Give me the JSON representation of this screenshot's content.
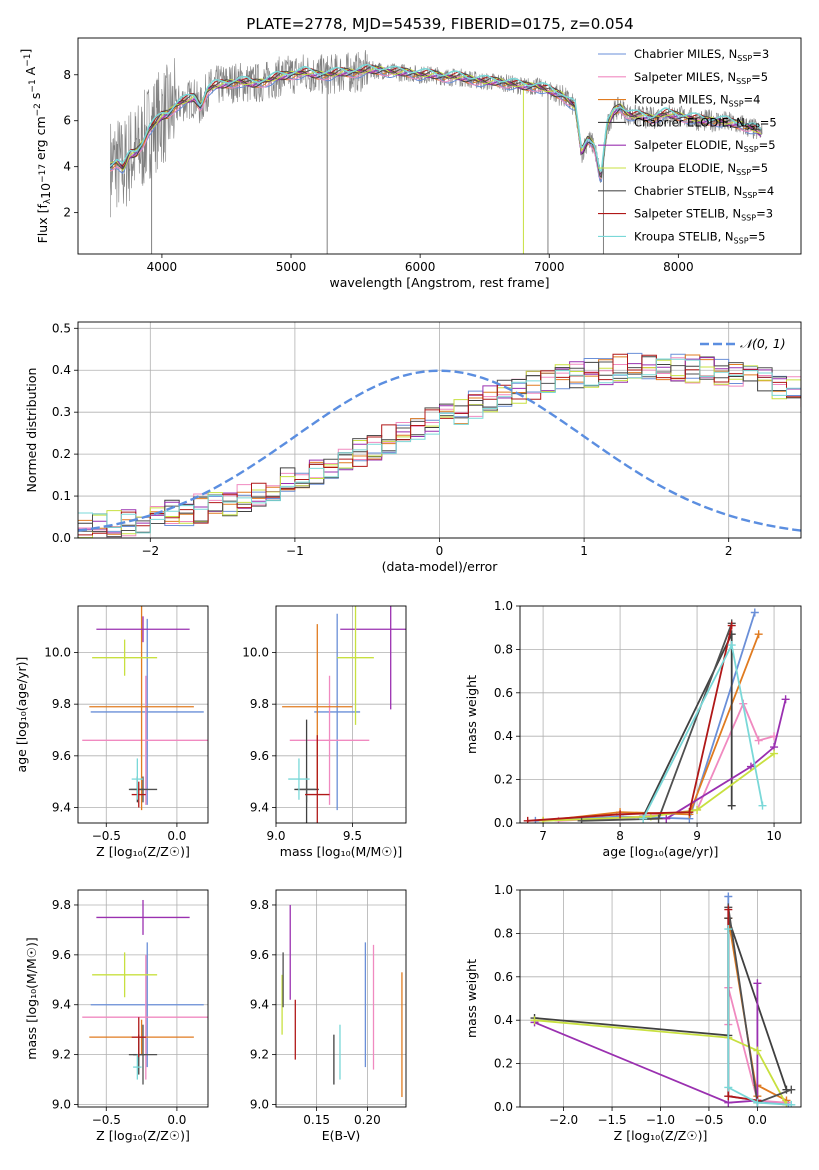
{
  "figure": {
    "title": "PLATE=2778, MJD=54539, FIBERID=0175, z=0.054",
    "legend_sub": "SSP",
    "legend_labels": [
      "Chabrier MILES, N",
      "Salpeter MILES, N",
      "Kroupa MILES, N",
      "Chabrier ELODIE, N",
      "Salpeter ELODIE, N",
      "Kroupa ELODIE, N",
      "Chabrier STELIB, N",
      "Salpeter STELIB, N",
      "Kroupa STELIB, N"
    ],
    "legend_eq": [
      "=3",
      "=5",
      "=4",
      "=5",
      "=5",
      "=5",
      "=4",
      "=3",
      "=5"
    ],
    "legend_colors": [
      "#6a8fd8",
      "#f08ac0",
      "#e07b20",
      "#404040",
      "#9a30b0",
      "#c8e040",
      "#505050",
      "#b01818",
      "#7ad8d8"
    ],
    "normal_label": "𝒩(0, 1)"
  },
  "chart_data": [
    {
      "id": "spectrum",
      "type": "line",
      "xlabel": "wavelength [Angstrom, rest frame]",
      "ylabel": "Flux [f_λ 10^-17 erg cm^-2 s^-1 A^-1]",
      "xlim": [
        3350,
        8950
      ],
      "ylim": [
        0.2,
        9.6
      ],
      "xticks": [
        4000,
        5000,
        6000,
        7000,
        8000
      ],
      "yticks": [
        2,
        4,
        6,
        8
      ],
      "grid": false,
      "legend_position": "upper right",
      "data_color": "#808080",
      "data_x_range": [
        3600,
        8650
      ],
      "model_x": [
        3600,
        3650,
        3700,
        3750,
        3800,
        3850,
        3900,
        3950,
        4000,
        4050,
        4100,
        4150,
        4200,
        4250,
        4300,
        4350,
        4400,
        4500,
        4600,
        4700,
        4800,
        4900,
        5000,
        5100,
        5200,
        5300,
        5400,
        5500,
        5600,
        5700,
        5800,
        5900,
        6000,
        6100,
        6200,
        6300,
        6400,
        6500,
        6600,
        6700,
        6800,
        6900,
        7000,
        7100,
        7200,
        7250,
        7300,
        7350,
        7400,
        7450,
        7500,
        7550,
        7600,
        7650,
        7700,
        7800,
        7900,
        8000,
        8100,
        8200,
        8300,
        8400,
        8500,
        8600,
        8650
      ],
      "model_y": [
        4.0,
        4.2,
        3.9,
        4.5,
        4.6,
        5.0,
        5.6,
        5.9,
        6.2,
        6.3,
        6.6,
        6.8,
        6.9,
        7.0,
        6.6,
        7.3,
        7.5,
        7.6,
        7.7,
        7.6,
        7.7,
        7.9,
        8.0,
        8.1,
        8.0,
        8.0,
        8.1,
        8.1,
        8.2,
        8.2,
        8.1,
        8.1,
        8.0,
        8.0,
        7.9,
        7.9,
        7.8,
        7.7,
        7.7,
        7.6,
        7.5,
        7.5,
        7.3,
        7.1,
        6.6,
        4.6,
        5.2,
        4.9,
        3.4,
        5.8,
        6.4,
        6.6,
        6.3,
        6.2,
        6.2,
        6.1,
        6.3,
        6.2,
        6.1,
        6.0,
        6.0,
        5.9,
        5.8,
        5.6,
        5.4
      ]
    },
    {
      "id": "residuals",
      "type": "line",
      "xlabel": "(data-model)/error",
      "ylabel": "Normed distribution",
      "xlim": [
        -2.5,
        2.5
      ],
      "ylim": [
        0,
        0.515
      ],
      "xticks": [
        -2,
        -1,
        0,
        1,
        2
      ],
      "yticks": [
        0,
        0.1,
        0.2,
        0.3,
        0.4,
        0.5
      ],
      "grid": true,
      "legend_position": "upper right",
      "bin_width": 0.1,
      "bin_start": -2.5,
      "hist_base": [
        0.025,
        0.028,
        0.032,
        0.036,
        0.042,
        0.048,
        0.055,
        0.062,
        0.07,
        0.078,
        0.088,
        0.098,
        0.11,
        0.122,
        0.135,
        0.148,
        0.162,
        0.176,
        0.19,
        0.205,
        0.22,
        0.235,
        0.25,
        0.264,
        0.278,
        0.292,
        0.305,
        0.318,
        0.33,
        0.342,
        0.353,
        0.363,
        0.372,
        0.381,
        0.388,
        0.394,
        0.4,
        0.404,
        0.407,
        0.408,
        0.408,
        0.407,
        0.404,
        0.4,
        0.394,
        0.388,
        0.381,
        0.372,
        0.363,
        0.353,
        0.342,
        0.33,
        0.318,
        0.305,
        0.292,
        0.278,
        0.264,
        0.25,
        0.235,
        0.22,
        0.205,
        0.19,
        0.176,
        0.162,
        0.148,
        0.135,
        0.122,
        0.11,
        0.098,
        0.088,
        0.078,
        0.07,
        0.062,
        0.055,
        0.048,
        0.042,
        0.036,
        0.032,
        0.028,
        0.025
      ]
    },
    {
      "id": "age-vs-Z",
      "type": "scatter",
      "xlabel": "Z [log₁₀(Z/Z☉)]",
      "ylabel": "age  [log₁₀(age/yr)]",
      "xlim": [
        -0.7,
        0.22
      ],
      "ylim": [
        9.34,
        10.18
      ],
      "xticks": [
        -0.5,
        0.0
      ],
      "yticks": [
        9.4,
        9.6,
        9.8,
        10.0
      ],
      "grid": true,
      "points": [
        {
          "x": -0.21,
          "y": 9.77,
          "xerr": 0.4,
          "yerr": 0.36
        },
        {
          "x": -0.22,
          "y": 9.66,
          "xerr": 0.45,
          "yerr": 0.25
        },
        {
          "x": -0.25,
          "y": 9.79,
          "xerr": 0.37,
          "yerr": 0.4
        },
        {
          "x": -0.28,
          "y": 9.47,
          "xerr": 0.05,
          "yerr": 0.05
        },
        {
          "x": -0.24,
          "y": 10.09,
          "xerr": 0.33,
          "yerr": 0.05
        },
        {
          "x": -0.37,
          "y": 9.98,
          "xerr": 0.23,
          "yerr": 0.07
        },
        {
          "x": -0.24,
          "y": 9.47,
          "xerr": 0.1,
          "yerr": 0.05
        },
        {
          "x": -0.27,
          "y": 9.45,
          "xerr": 0.05,
          "yerr": 0.05
        },
        {
          "x": -0.28,
          "y": 9.51,
          "xerr": 0.04,
          "yerr": 0.08
        }
      ]
    },
    {
      "id": "age-vs-mass",
      "type": "scatter",
      "xlabel": "mass [log₁₀(M/M☉)]",
      "ylabel": "",
      "xlim": [
        9.0,
        9.85
      ],
      "ylim": [
        9.34,
        10.18
      ],
      "xticks": [
        9.0,
        9.5
      ],
      "yticks": [
        9.4,
        9.6,
        9.8,
        10.0
      ],
      "grid": true,
      "points": [
        {
          "x": 9.4,
          "y": 9.77,
          "xerr": 0.15,
          "yerr": 0.38
        },
        {
          "x": 9.35,
          "y": 9.66,
          "xerr": 0.26,
          "yerr": 0.25
        },
        {
          "x": 9.27,
          "y": 9.79,
          "xerr": 0.23,
          "yerr": 0.32
        },
        {
          "x": 9.2,
          "y": 9.47,
          "xerr": 0.08,
          "yerr": 0.27
        },
        {
          "x": 9.75,
          "y": 10.09,
          "xerr": 0.33,
          "yerr": 0.31
        },
        {
          "x": 9.52,
          "y": 9.98,
          "xerr": 0.12,
          "yerr": 0.26
        },
        {
          "x": 9.2,
          "y": 9.47,
          "xerr": 0.06,
          "yerr": 0.05
        },
        {
          "x": 9.27,
          "y": 9.45,
          "xerr": 0.08,
          "yerr": 0.23
        },
        {
          "x": 9.15,
          "y": 9.51,
          "xerr": 0.07,
          "yerr": 0.08
        }
      ]
    },
    {
      "id": "weight-vs-age",
      "type": "line",
      "xlabel": "age  [log₁₀(age/yr)]",
      "ylabel": "mass weight",
      "xlim": [
        6.7,
        10.35
      ],
      "ylim": [
        0,
        1.0
      ],
      "xticks": [
        7,
        8,
        9,
        10
      ],
      "yticks": [
        0.0,
        0.2,
        0.4,
        0.6,
        0.8,
        1.0
      ],
      "grid": true,
      "series": [
        {
          "x": [
            6.9,
            8.0,
            8.9,
            9.75
          ],
          "y": [
            0.01,
            0.03,
            0.02,
            0.97
          ]
        },
        {
          "x": [
            7.2,
            8.3,
            9.0,
            9.6,
            9.8,
            10.0
          ],
          "y": [
            0.01,
            0.03,
            0.06,
            0.55,
            0.38,
            0.4
          ]
        },
        {
          "x": [
            7.0,
            8.0,
            8.9,
            9.8
          ],
          "y": [
            0.01,
            0.05,
            0.04,
            0.87
          ]
        },
        {
          "x": [
            8.3,
            9.45,
            9.45
          ],
          "y": [
            0.03,
            0.87,
            0.08
          ]
        },
        {
          "x": [
            8.6,
            9.7,
            10.0,
            10.15
          ],
          "y": [
            0.02,
            0.26,
            0.35,
            0.57
          ]
        },
        {
          "x": [
            7.0,
            8.4,
            9.0,
            10.0
          ],
          "y": [
            0.01,
            0.03,
            0.06,
            0.32
          ]
        },
        {
          "x": [
            7.5,
            8.5,
            9.45
          ],
          "y": [
            0.01,
            0.02,
            0.92
          ]
        },
        {
          "x": [
            6.8,
            8.0,
            8.9,
            9.45
          ],
          "y": [
            0.01,
            0.04,
            0.05,
            0.91
          ]
        },
        {
          "x": [
            8.3,
            9.45,
            9.85
          ],
          "y": [
            0.02,
            0.82,
            0.08
          ]
        }
      ]
    },
    {
      "id": "mass-vs-Z",
      "type": "scatter",
      "xlabel": "Z [log₁₀(Z/Z☉)]",
      "ylabel": "mass [log₁₀(M/M☉)]",
      "xlim": [
        -0.7,
        0.22
      ],
      "ylim": [
        8.99,
        9.86
      ],
      "xticks": [
        -0.5,
        0.0
      ],
      "yticks": [
        9.0,
        9.2,
        9.4,
        9.6,
        9.8
      ],
      "grid": true,
      "points": [
        {
          "x": -0.21,
          "y": 9.4,
          "xerr": 0.4,
          "yerr": 0.25
        },
        {
          "x": -0.22,
          "y": 9.35,
          "xerr": 0.45,
          "yerr": 0.25
        },
        {
          "x": -0.25,
          "y": 9.27,
          "xerr": 0.37,
          "yerr": 0.07
        },
        {
          "x": -0.27,
          "y": 9.2,
          "xerr": 0.04,
          "yerr": 0.08
        },
        {
          "x": -0.24,
          "y": 9.75,
          "xerr": 0.33,
          "yerr": 0.07
        },
        {
          "x": -0.37,
          "y": 9.52,
          "xerr": 0.23,
          "yerr": 0.09
        },
        {
          "x": -0.24,
          "y": 9.2,
          "xerr": 0.1,
          "yerr": 0.12
        },
        {
          "x": -0.27,
          "y": 9.27,
          "xerr": 0.05,
          "yerr": 0.08
        },
        {
          "x": -0.28,
          "y": 9.15,
          "xerr": 0.03,
          "yerr": 0.05
        }
      ]
    },
    {
      "id": "mass-vs-EBV",
      "type": "scatter",
      "xlabel": "E(B-V)",
      "ylabel": "",
      "xlim": [
        0.11,
        0.238
      ],
      "ylim": [
        8.99,
        9.86
      ],
      "xticks": [
        0.15,
        0.2
      ],
      "yticks": [
        9.0,
        9.2,
        9.4,
        9.6,
        9.8
      ],
      "grid": true,
      "points": [
        {
          "x": 0.198,
          "y": 9.4,
          "xerr": 0,
          "yerr": 0.25
        },
        {
          "x": 0.206,
          "y": 9.39,
          "xerr": 0,
          "yerr": 0.25
        },
        {
          "x": 0.234,
          "y": 9.28,
          "xerr": 0,
          "yerr": 0.25
        },
        {
          "x": 0.167,
          "y": 9.18,
          "xerr": 0,
          "yerr": 0.1
        },
        {
          "x": 0.124,
          "y": 9.61,
          "xerr": 0,
          "yerr": 0.19
        },
        {
          "x": 0.116,
          "y": 9.4,
          "xerr": 0,
          "yerr": 0.12
        },
        {
          "x": 0.117,
          "y": 9.5,
          "xerr": 0,
          "yerr": 0.11
        },
        {
          "x": 0.129,
          "y": 9.3,
          "xerr": 0,
          "yerr": 0.12
        },
        {
          "x": 0.173,
          "y": 9.21,
          "xerr": 0,
          "yerr": 0.11
        }
      ]
    },
    {
      "id": "weight-vs-Z",
      "type": "line",
      "xlabel": "Z [log₁₀(Z/Z☉)]",
      "ylabel": "mass weight",
      "xlim": [
        -2.45,
        0.45
      ],
      "ylim": [
        0,
        1.0
      ],
      "xticks": [
        -2.0,
        -1.5,
        -1.0,
        -0.5,
        0.0
      ],
      "yticks": [
        0.0,
        0.2,
        0.4,
        0.6,
        0.8,
        1.0
      ],
      "grid": true,
      "series": [
        {
          "x": [
            -0.3,
            -0.3,
            0.0,
            0.32
          ],
          "y": [
            0.97,
            0.05,
            0.03,
            0.01
          ]
        },
        {
          "x": [
            -0.3,
            -0.3,
            0.0,
            0.3
          ],
          "y": [
            0.38,
            0.55,
            0.03,
            0.02
          ]
        },
        {
          "x": [
            -0.3,
            0.0,
            0.0,
            0.3
          ],
          "y": [
            0.87,
            0.05,
            0.1,
            0.03
          ]
        },
        {
          "x": [
            -2.3,
            -0.3,
            -0.3,
            0.3
          ],
          "y": [
            0.41,
            0.33,
            0.87,
            0.08
          ]
        },
        {
          "x": [
            -2.3,
            -0.3,
            0.0,
            0.0
          ],
          "y": [
            0.39,
            0.02,
            0.03,
            0.57
          ]
        },
        {
          "x": [
            -2.3,
            -0.3,
            0.0,
            0.3
          ],
          "y": [
            0.4,
            0.32,
            0.26,
            0.01
          ]
        },
        {
          "x": [
            -0.3,
            0.0,
            0.35
          ],
          "y": [
            0.92,
            0.02,
            0.08
          ]
        },
        {
          "x": [
            -0.3,
            -0.3,
            0.0
          ],
          "y": [
            0.91,
            0.05,
            0.03
          ]
        },
        {
          "x": [
            -0.3,
            -0.3,
            0.0,
            0.35
          ],
          "y": [
            0.82,
            0.09,
            0.02,
            0.01
          ]
        }
      ]
    }
  ]
}
